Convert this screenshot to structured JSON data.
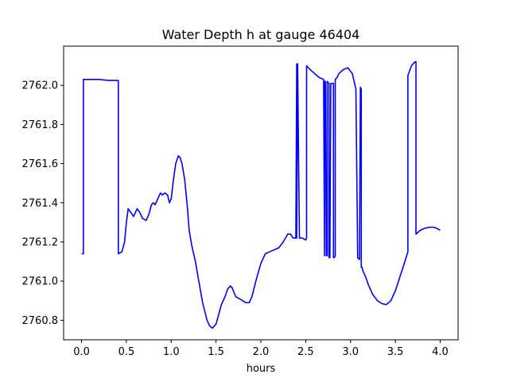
{
  "chart_data": {
    "type": "line",
    "title": "Water Depth h at gauge 46404",
    "xlabel": "hours",
    "ylabel": "",
    "xlim": [
      -0.2,
      4.2
    ],
    "ylim": [
      2760.7,
      2762.2
    ],
    "xticks": [
      0.0,
      0.5,
      1.0,
      1.5,
      2.0,
      2.5,
      3.0,
      3.5,
      4.0
    ],
    "xtick_labels": [
      "0.0",
      "0.5",
      "1.0",
      "1.5",
      "2.0",
      "2.5",
      "3.0",
      "3.5",
      "4.0"
    ],
    "yticks": [
      2760.8,
      2761.0,
      2761.2,
      2761.4,
      2761.6,
      2761.8,
      2762.0
    ],
    "ytick_labels": [
      "2760.8",
      "2761.0",
      "2761.2",
      "2761.4",
      "2761.6",
      "2761.8",
      "2762.0"
    ],
    "grid": false,
    "series": [
      {
        "name": "",
        "color": "#0000ff",
        "x": [
          0.0,
          0.02,
          0.02,
          0.1,
          0.2,
          0.3,
          0.41,
          0.41,
          0.45,
          0.48,
          0.5,
          0.52,
          0.55,
          0.58,
          0.6,
          0.62,
          0.65,
          0.68,
          0.72,
          0.75,
          0.78,
          0.8,
          0.82,
          0.85,
          0.88,
          0.9,
          0.93,
          0.96,
          0.98,
          1.0,
          1.02,
          1.05,
          1.08,
          1.1,
          1.12,
          1.15,
          1.18,
          1.2,
          1.23,
          1.27,
          1.3,
          1.35,
          1.4,
          1.43,
          1.46,
          1.5,
          1.53,
          1.56,
          1.6,
          1.63,
          1.66,
          1.68,
          1.72,
          1.78,
          1.83,
          1.87,
          1.9,
          1.95,
          2.0,
          2.05,
          2.1,
          2.15,
          2.2,
          2.25,
          2.3,
          2.33,
          2.36,
          2.38,
          2.39,
          2.4,
          2.4,
          2.41,
          2.43,
          2.46,
          2.5,
          2.51,
          2.51,
          2.55,
          2.6,
          2.65,
          2.7,
          2.71,
          2.71,
          2.72,
          2.73,
          2.74,
          2.74,
          2.76,
          2.76,
          2.77,
          2.78,
          2.78,
          2.81,
          2.81,
          2.82,
          2.83,
          2.83,
          2.85,
          2.86,
          2.87,
          2.92,
          2.97,
          3.02,
          3.06,
          3.08,
          3.1,
          3.1,
          3.11,
          3.12,
          3.12,
          3.13,
          3.14,
          3.17,
          3.2,
          3.25,
          3.3,
          3.35,
          3.4,
          3.45,
          3.5,
          3.55,
          3.6,
          3.64,
          3.64,
          3.68,
          3.72,
          3.73,
          3.73,
          3.78,
          3.83,
          3.88,
          3.93,
          3.96,
          4.0
        ],
        "y": [
          2761.14,
          2761.14,
          2762.03,
          2762.03,
          2762.03,
          2762.025,
          2762.025,
          2761.14,
          2761.15,
          2761.2,
          2761.3,
          2761.37,
          2761.35,
          2761.33,
          2761.35,
          2761.37,
          2761.35,
          2761.32,
          2761.31,
          2761.34,
          2761.39,
          2761.4,
          2761.39,
          2761.42,
          2761.45,
          2761.44,
          2761.45,
          2761.44,
          2761.4,
          2761.42,
          2761.5,
          2761.6,
          2761.64,
          2761.63,
          2761.6,
          2761.52,
          2761.38,
          2761.26,
          2761.18,
          2761.1,
          2761.02,
          2760.89,
          2760.8,
          2760.77,
          2760.76,
          2760.78,
          2760.83,
          2760.88,
          2760.92,
          2760.96,
          2760.975,
          2760.965,
          2760.92,
          2760.905,
          2760.89,
          2760.89,
          2760.92,
          2761.01,
          2761.09,
          2761.14,
          2761.15,
          2761.16,
          2761.17,
          2761.2,
          2761.24,
          2761.24,
          2761.22,
          2761.22,
          2761.22,
          2762.11,
          2761.22,
          2762.11,
          2761.22,
          2761.22,
          2761.21,
          2761.22,
          2762.1,
          2762.08,
          2762.06,
          2762.04,
          2762.03,
          2761.13,
          2762.02,
          2762.02,
          2761.13,
          2761.13,
          2762.02,
          2762.01,
          2761.12,
          2761.12,
          2762.01,
          2762.01,
          2762.01,
          2761.12,
          2761.12,
          2761.13,
          2762.03,
          2762.04,
          2762.05,
          2762.06,
          2762.08,
          2762.09,
          2762.06,
          2761.98,
          2761.12,
          2761.11,
          2761.11,
          2761.99,
          2761.98,
          2761.07,
          2761.07,
          2761.05,
          2761.02,
          2760.98,
          2760.93,
          2760.9,
          2760.885,
          2760.88,
          2760.9,
          2760.95,
          2761.02,
          2761.09,
          2761.15,
          2762.05,
          2762.1,
          2762.12,
          2762.12,
          2761.24,
          2761.26,
          2761.27,
          2761.275,
          2761.275,
          2761.27,
          2761.26
        ]
      }
    ]
  }
}
